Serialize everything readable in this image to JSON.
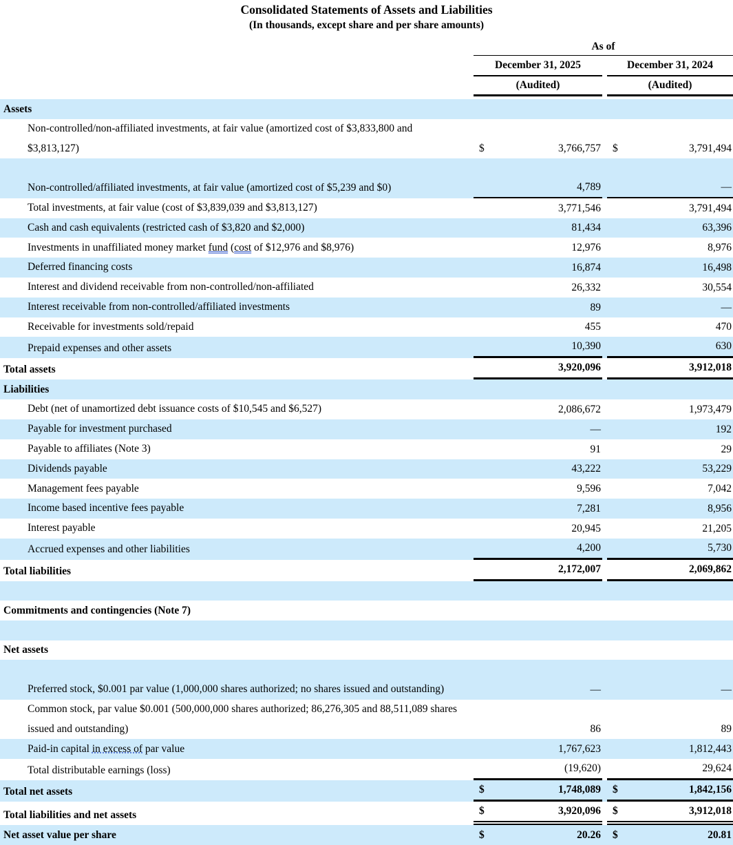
{
  "title": "Consolidated Statements of Assets and Liabilities",
  "subtitle": "(In thousands, except share and per share amounts)",
  "columns": {
    "as_of": "As of",
    "date_2025": "December 31, 2025",
    "date_2024": "December 31, 2024",
    "audited_2025": "(Audited)",
    "audited_2024": "(Audited)"
  },
  "colors": {
    "row_highlight": "#cdeafb",
    "text": "#000000",
    "grammar_underline": "#3a5fcd"
  },
  "rows": [
    {
      "name": "section-header-assets",
      "bold": true,
      "label": "Assets",
      "bg": "blue"
    },
    {
      "name": "row-noncontrolled-nonaffiliated-investments",
      "indent": true,
      "two_line": true,
      "bg": "white",
      "label": "Non-controlled/non-affiliated investments, at fair value (amortized cost of $3,833,800 and $3,813,127)",
      "d1": "$",
      "v1": "3,766,757",
      "d2": "$",
      "v2": "3,791,494"
    },
    {
      "name": "row-noncontrolled-affiliated-investments",
      "indent": true,
      "two_line": true,
      "bg": "blue",
      "label": "Non-controlled/affiliated investments, at fair value (amortized cost of $5,239 and $0)",
      "v1": "4,789",
      "v2": "—",
      "border": "thin"
    },
    {
      "name": "row-total-investments",
      "indent": true,
      "bg": "white",
      "label": "Total investments, at fair value (cost of $3,839,039 and $3,813,127)",
      "v1": "3,771,546",
      "v2": "3,791,494"
    },
    {
      "name": "row-cash-and-equivalents",
      "indent": true,
      "bg": "blue",
      "label": "Cash and cash equivalents (restricted cash of $3,820 and $2,000)",
      "v1": "81,434",
      "v2": "63,396"
    },
    {
      "name": "row-money-market-fund",
      "indent": true,
      "bg": "white",
      "parts": [
        {
          "t": "Investments in unaffiliated money market "
        },
        {
          "t": "fund",
          "u": "double"
        },
        {
          "t": " ("
        },
        {
          "t": "cost",
          "u": "double"
        },
        {
          "t": " of $12,976 and $8,976)"
        }
      ],
      "v1": "12,976",
      "v2": "8,976"
    },
    {
      "name": "row-deferred-financing-costs",
      "indent": true,
      "bg": "blue",
      "label": "Deferred financing costs",
      "v1": "16,874",
      "v2": "16,498"
    },
    {
      "name": "row-interest-dividend-receivable",
      "indent": true,
      "bg": "white",
      "label": "Interest and dividend receivable from non-controlled/non-affiliated",
      "v1": "26,332",
      "v2": "30,554"
    },
    {
      "name": "row-interest-receivable-affiliated",
      "indent": true,
      "bg": "blue",
      "label": "Interest receivable from non-controlled/affiliated investments",
      "v1": "89",
      "v2": "—"
    },
    {
      "name": "row-receivable-investments-sold",
      "indent": true,
      "bg": "white",
      "label": "Receivable for investments sold/repaid",
      "v1": "455",
      "v2": "470"
    },
    {
      "name": "row-prepaid-expenses",
      "indent": true,
      "bg": "blue",
      "label": "Prepaid expenses and other assets",
      "v1": "10,390",
      "v2": "630",
      "border": "thick"
    },
    {
      "name": "row-total-assets",
      "bold": true,
      "bg": "white",
      "label": "Total assets",
      "v1": "3,920,096",
      "v2": "3,912,018",
      "border": "thick"
    },
    {
      "name": "section-header-liabilities",
      "bold": true,
      "label": "Liabilities",
      "bg": "blue"
    },
    {
      "name": "row-debt",
      "indent": true,
      "bg": "white",
      "label": "Debt (net of unamortized debt issuance costs of $10,545 and $6,527)",
      "v1": "2,086,672",
      "v2": "1,973,479"
    },
    {
      "name": "row-payable-investment-purchased",
      "indent": true,
      "bg": "blue",
      "label": "Payable for investment purchased",
      "v1": "—",
      "v2": "192"
    },
    {
      "name": "row-payable-to-affiliates",
      "indent": true,
      "bg": "white",
      "label": "Payable to affiliates (Note 3)",
      "v1": "91",
      "v2": "29"
    },
    {
      "name": "row-dividends-payable",
      "indent": true,
      "bg": "blue",
      "label": "Dividends payable",
      "v1": "43,222",
      "v2": "53,229"
    },
    {
      "name": "row-management-fees-payable",
      "indent": true,
      "bg": "white",
      "label": "Management fees payable",
      "v1": "9,596",
      "v2": "7,042"
    },
    {
      "name": "row-income-incentive-fees-payable",
      "indent": true,
      "bg": "blue",
      "label": "Income based incentive fees payable",
      "v1": "7,281",
      "v2": "8,956"
    },
    {
      "name": "row-interest-payable",
      "indent": true,
      "bg": "white",
      "label": "Interest payable",
      "v1": "20,945",
      "v2": "21,205"
    },
    {
      "name": "row-accrued-expenses",
      "indent": true,
      "bg": "blue",
      "label": "Accrued expenses and other liabilities",
      "v1": "4,200",
      "v2": "5,730",
      "border": "thick"
    },
    {
      "name": "row-total-liabilities",
      "bold": true,
      "bg": "white",
      "label": "Total liabilities",
      "v1": "2,172,007",
      "v2": "2,069,862",
      "border": "thick"
    },
    {
      "name": "spacer-row",
      "blank": true,
      "bg": "blue"
    },
    {
      "name": "row-commitments-contingencies",
      "bold": true,
      "bg": "white",
      "label": "Commitments and contingencies (Note 7)"
    },
    {
      "name": "spacer-row",
      "blank": true,
      "bg": "blue"
    },
    {
      "name": "section-header-net-assets",
      "bold": true,
      "bg": "white",
      "label": "Net assets"
    },
    {
      "name": "row-preferred-stock",
      "indent": true,
      "two_line": true,
      "bg": "blue",
      "label": "Preferred stock, $0.001 par value (1,000,000 shares authorized; no shares issued and outstanding)",
      "v1": "—",
      "v2": "—"
    },
    {
      "name": "row-common-stock",
      "indent": true,
      "two_line": true,
      "bg": "white",
      "label": "Common stock, par value $0.001 (500,000,000 shares authorized; 86,276,305 and 88,511,089 shares issued and outstanding)",
      "v1": "86",
      "v2": "89"
    },
    {
      "name": "row-paid-in-capital",
      "indent": true,
      "bg": "blue",
      "parts": [
        {
          "t": "Paid-in capital "
        },
        {
          "t": "in excess of",
          "u": "dotted"
        },
        {
          "t": " par value"
        }
      ],
      "v1": "1,767,623",
      "v2": "1,812,443"
    },
    {
      "name": "row-total-distributable-earnings",
      "indent": true,
      "bg": "white",
      "label": "Total distributable earnings (loss)",
      "v1": "(19,620)",
      "v2": "29,624",
      "border": "thick"
    },
    {
      "name": "row-total-net-assets",
      "bold": true,
      "bg": "blue",
      "label": "Total net assets",
      "d1": "$",
      "v1": "1,748,089",
      "d2": "$",
      "v2": "1,842,156",
      "border": "thick"
    },
    {
      "name": "row-total-liabilities-and-net-assets",
      "bold": true,
      "bg": "white",
      "label": "Total liabilities and net assets",
      "d1": "$",
      "v1": "3,920,096",
      "d2": "$",
      "v2": "3,912,018",
      "border": "double"
    },
    {
      "name": "row-net-asset-value-per-share",
      "bold": true,
      "bg": "blue",
      "label": "Net asset value per share",
      "d1": "$",
      "v1": "20.26",
      "d2": "$",
      "v2": "20.81"
    }
  ]
}
